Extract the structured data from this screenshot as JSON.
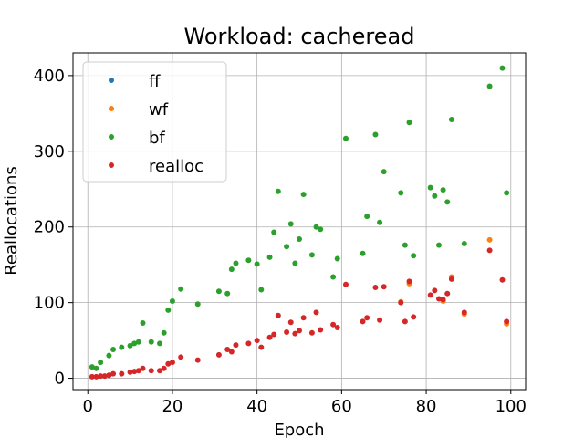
{
  "chart_data": {
    "type": "scatter",
    "title": "Workload: cacheread",
    "xlabel": "Epoch",
    "ylabel": "Reallocations",
    "xlim": [
      -3.5,
      103.5
    ],
    "ylim": [
      -15,
      430
    ],
    "xticks": [
      0,
      20,
      40,
      60,
      80,
      100
    ],
    "yticks": [
      0,
      100,
      200,
      300,
      400
    ],
    "grid": true,
    "legend_position": "upper-left",
    "series": [
      {
        "name": "ff",
        "color": "#1f77b4",
        "points": []
      },
      {
        "name": "wf",
        "color": "#ff7f0e",
        "points": [
          [
            84,
            102
          ],
          [
            86,
            134
          ],
          [
            95,
            183
          ],
          [
            99,
            72
          ],
          [
            74,
            101
          ],
          [
            76,
            125
          ],
          [
            89,
            85
          ]
        ]
      },
      {
        "name": "bf",
        "color": "#2ca02c",
        "points": [
          [
            1,
            15
          ],
          [
            2,
            13
          ],
          [
            3,
            21
          ],
          [
            5,
            30
          ],
          [
            6,
            38
          ],
          [
            8,
            41
          ],
          [
            10,
            43
          ],
          [
            11,
            46
          ],
          [
            12,
            48
          ],
          [
            13,
            73
          ],
          [
            15,
            48
          ],
          [
            17,
            46
          ],
          [
            18,
            60
          ],
          [
            19,
            90
          ],
          [
            20,
            102
          ],
          [
            22,
            118
          ],
          [
            26,
            98
          ],
          [
            31,
            115
          ],
          [
            33,
            112
          ],
          [
            34,
            144
          ],
          [
            35,
            152
          ],
          [
            38,
            156
          ],
          [
            40,
            151
          ],
          [
            41,
            117
          ],
          [
            43,
            160
          ],
          [
            44,
            193
          ],
          [
            45,
            247
          ],
          [
            47,
            174
          ],
          [
            48,
            204
          ],
          [
            49,
            152
          ],
          [
            50,
            184
          ],
          [
            51,
            243
          ],
          [
            53,
            163
          ],
          [
            54,
            200
          ],
          [
            55,
            197
          ],
          [
            58,
            134
          ],
          [
            59,
            158
          ],
          [
            61,
            317
          ],
          [
            65,
            165
          ],
          [
            66,
            214
          ],
          [
            68,
            322
          ],
          [
            69,
            206
          ],
          [
            70,
            273
          ],
          [
            74,
            245
          ],
          [
            75,
            176
          ],
          [
            76,
            338
          ],
          [
            77,
            162
          ],
          [
            81,
            252
          ],
          [
            82,
            241
          ],
          [
            83,
            176
          ],
          [
            84,
            249
          ],
          [
            85,
            233
          ],
          [
            86,
            342
          ],
          [
            89,
            178
          ],
          [
            95,
            386
          ],
          [
            98,
            410
          ],
          [
            99,
            245
          ]
        ]
      },
      {
        "name": "realloc",
        "color": "#d62728",
        "points": [
          [
            1,
            2
          ],
          [
            2,
            2
          ],
          [
            3,
            3
          ],
          [
            4,
            3
          ],
          [
            5,
            4
          ],
          [
            6,
            6
          ],
          [
            8,
            6
          ],
          [
            10,
            8
          ],
          [
            11,
            9
          ],
          [
            12,
            10
          ],
          [
            13,
            13
          ],
          [
            15,
            10
          ],
          [
            17,
            10
          ],
          [
            18,
            13
          ],
          [
            19,
            19
          ],
          [
            20,
            21
          ],
          [
            22,
            28
          ],
          [
            26,
            24
          ],
          [
            31,
            31
          ],
          [
            33,
            38
          ],
          [
            34,
            35
          ],
          [
            35,
            44
          ],
          [
            38,
            46
          ],
          [
            40,
            50
          ],
          [
            41,
            41
          ],
          [
            43,
            54
          ],
          [
            44,
            58
          ],
          [
            45,
            83
          ],
          [
            47,
            61
          ],
          [
            48,
            74
          ],
          [
            49,
            59
          ],
          [
            50,
            63
          ],
          [
            51,
            80
          ],
          [
            53,
            60
          ],
          [
            54,
            87
          ],
          [
            55,
            64
          ],
          [
            58,
            71
          ],
          [
            59,
            67
          ],
          [
            61,
            124
          ],
          [
            65,
            75
          ],
          [
            66,
            80
          ],
          [
            68,
            120
          ],
          [
            69,
            77
          ],
          [
            70,
            121
          ],
          [
            74,
            100
          ],
          [
            75,
            75
          ],
          [
            76,
            128
          ],
          [
            77,
            81
          ],
          [
            81,
            110
          ],
          [
            82,
            116
          ],
          [
            83,
            105
          ],
          [
            84,
            104
          ],
          [
            85,
            112
          ],
          [
            86,
            131
          ],
          [
            89,
            87
          ],
          [
            95,
            169
          ],
          [
            98,
            130
          ],
          [
            99,
            75
          ]
        ]
      }
    ]
  }
}
